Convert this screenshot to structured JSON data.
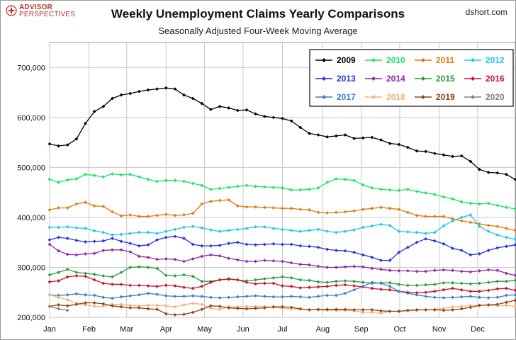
{
  "brand": {
    "line1": "ADVISOR",
    "line2": "PERSPECTIVES"
  },
  "header": {
    "title": "Weekly Unemployment Claims Yearly Comparisons",
    "subtitle": "Seasonally Adjusted Four-Week Moving Average",
    "source": "dshort.com"
  },
  "chart_data": {
    "type": "line",
    "title": "Weekly Unemployment Claims Yearly Comparisons",
    "subtitle": "Seasonally Adjusted Four-Week Moving Average",
    "xlabel": "",
    "ylabel": "",
    "x_unit": "week",
    "xlim": [
      1,
      53
    ],
    "ylim": [
      200000,
      750000
    ],
    "y_ticks": [
      200000,
      300000,
      400000,
      500000,
      600000,
      700000
    ],
    "y_tick_labels": [
      "200,000",
      "300,000",
      "400,000",
      "500,000",
      "600,000",
      "700,000"
    ],
    "x_tick_labels": [
      "Jan",
      "Feb",
      "Mar",
      "Apr",
      "May",
      "Jun",
      "Jul",
      "Aug",
      "Sep",
      "Oct",
      "Nov",
      "Dec"
    ],
    "x_tick_weeks": [
      1,
      5.4,
      9.6,
      14,
      18.3,
      22.6,
      27,
      31.5,
      35.8,
      40.1,
      44.5,
      48.8
    ],
    "grid": true,
    "legend_position": "top-right",
    "series": [
      {
        "name": "2009",
        "color": "#000000",
        "values": [
          547000,
          543000,
          545000,
          557000,
          588000,
          612000,
          622000,
          638000,
          645000,
          648000,
          652000,
          655000,
          657000,
          659000,
          657000,
          645000,
          638000,
          628000,
          616000,
          622000,
          619000,
          614000,
          615000,
          607000,
          602000,
          600000,
          598000,
          593000,
          580000,
          568000,
          565000,
          561000,
          563000,
          565000,
          558000,
          559000,
          560000,
          555000,
          548000,
          546000,
          540000,
          533000,
          532000,
          528000,
          525000,
          522000,
          523000,
          512000,
          496000,
          490000,
          489000,
          486000,
          476000
        ]
      },
      {
        "name": "2010",
        "color": "#1fe06a",
        "values": [
          476000,
          470000,
          475000,
          477000,
          486000,
          484000,
          481000,
          487000,
          485000,
          486000,
          481000,
          476000,
          472000,
          474000,
          474000,
          472000,
          468000,
          464000,
          456000,
          458000,
          460000,
          462000,
          464000,
          462000,
          461000,
          460000,
          459000,
          455000,
          455000,
          456000,
          459000,
          470000,
          477000,
          476000,
          474000,
          465000,
          459000,
          456000,
          455000,
          454000,
          456000,
          452000,
          449000,
          446000,
          441000,
          437000,
          431000,
          428000,
          427000,
          428000,
          424000,
          420000,
          417000
        ]
      },
      {
        "name": "2011",
        "color": "#e07a14",
        "values": [
          415000,
          419000,
          419000,
          427000,
          430000,
          423000,
          422000,
          411000,
          403000,
          405000,
          402000,
          402000,
          404000,
          406000,
          404000,
          405000,
          408000,
          427000,
          432000,
          434000,
          435000,
          423000,
          421000,
          421000,
          420000,
          419000,
          418000,
          418000,
          416000,
          415000,
          410000,
          409000,
          410000,
          411000,
          413000,
          416000,
          418000,
          420000,
          418000,
          416000,
          410000,
          404000,
          402000,
          402000,
          402000,
          397000,
          393000,
          390000,
          387000,
          384000,
          382000,
          378000,
          374000
        ]
      },
      {
        "name": "2012",
        "color": "#27c4e6",
        "values": [
          380000,
          380000,
          381000,
          379000,
          378000,
          373000,
          370000,
          365000,
          366000,
          368000,
          370000,
          370000,
          368000,
          372000,
          376000,
          380000,
          382000,
          379000,
          375000,
          372000,
          374000,
          376000,
          378000,
          381000,
          381000,
          378000,
          376000,
          374000,
          372000,
          374000,
          376000,
          372000,
          370000,
          372000,
          375000,
          380000,
          383000,
          386000,
          384000,
          372000,
          371000,
          370000,
          368000,
          370000,
          383000,
          393000,
          400000,
          405000,
          382000,
          372000,
          365000,
          360000,
          356000
        ]
      },
      {
        "name": "2013",
        "color": "#2233dd",
        "values": [
          355000,
          360000,
          358000,
          354000,
          351000,
          352000,
          353000,
          358000,
          352000,
          348000,
          343000,
          345000,
          355000,
          360000,
          362000,
          358000,
          346000,
          343000,
          343000,
          344000,
          348000,
          350000,
          346000,
          345000,
          346000,
          347000,
          346000,
          346000,
          343000,
          342000,
          340000,
          336000,
          334000,
          333000,
          330000,
          325000,
          320000,
          314000,
          314000,
          330000,
          340000,
          350000,
          357000,
          353000,
          347000,
          338000,
          334000,
          325000,
          327000,
          334000,
          339000,
          342000,
          345000
        ]
      },
      {
        "name": "2014",
        "color": "#8b2aa8",
        "values": [
          346000,
          333000,
          326000,
          325000,
          327000,
          328000,
          334000,
          335000,
          335000,
          331000,
          322000,
          320000,
          316000,
          317000,
          316000,
          312000,
          317000,
          322000,
          325000,
          323000,
          318000,
          315000,
          312000,
          312000,
          314000,
          313000,
          312000,
          309000,
          306000,
          305000,
          302000,
          300000,
          300000,
          301000,
          302000,
          301000,
          298000,
          296000,
          294000,
          293000,
          293000,
          292000,
          292000,
          294000,
          295000,
          294000,
          292000,
          291000,
          293000,
          295000,
          294000,
          288000,
          284000
        ]
      },
      {
        "name": "2015",
        "color": "#2b9a3d",
        "values": [
          285000,
          290000,
          296000,
          290000,
          288000,
          286000,
          283000,
          281000,
          290000,
          300000,
          301000,
          300000,
          298000,
          284000,
          283000,
          285000,
          282000,
          272000,
          272000,
          275000,
          276000,
          275000,
          273000,
          275000,
          277000,
          279000,
          281000,
          279000,
          275000,
          274000,
          271000,
          270000,
          272000,
          273000,
          272000,
          270000,
          268000,
          269000,
          269000,
          266000,
          264000,
          264000,
          265000,
          266000,
          269000,
          269000,
          268000,
          267000,
          268000,
          270000,
          272000,
          272000,
          274000
        ]
      },
      {
        "name": "2016",
        "color": "#c4152a",
        "values": [
          271000,
          273000,
          281000,
          283000,
          282000,
          275000,
          268000,
          266000,
          266000,
          264000,
          264000,
          263000,
          262000,
          264000,
          263000,
          260000,
          258000,
          262000,
          270000,
          275000,
          277000,
          275000,
          270000,
          267000,
          268000,
          268000,
          263000,
          262000,
          259000,
          260000,
          261000,
          262000,
          264000,
          265000,
          263000,
          261000,
          258000,
          256000,
          255000,
          252000,
          250000,
          249000,
          250000,
          252000,
          255000,
          258000,
          255000,
          252000,
          252000,
          254000,
          257000,
          258000,
          254000
        ]
      },
      {
        "name": "2017",
        "color": "#3f7fc4",
        "values": [
          245000,
          244000,
          245000,
          247000,
          245000,
          244000,
          240000,
          238000,
          241000,
          243000,
          245000,
          248000,
          246000,
          243000,
          242000,
          242000,
          243000,
          242000,
          240000,
          239000,
          240000,
          241000,
          242000,
          243000,
          242000,
          241000,
          241000,
          242000,
          241000,
          240000,
          242000,
          244000,
          244000,
          248000,
          255000,
          262000,
          270000,
          268000,
          262000,
          252000,
          248000,
          245000,
          242000,
          240000,
          239000,
          240000,
          241000,
          242000,
          240000,
          239000,
          240000,
          244000,
          245000
        ]
      },
      {
        "name": "2018",
        "color": "#f5b27a",
        "values": [
          245000,
          240000,
          235000,
          228000,
          225000,
          222000,
          222000,
          226000,
          226000,
          224000,
          223000,
          224000,
          224000,
          223000,
          221000,
          225000,
          228000,
          226000,
          218000,
          216000,
          221000,
          221000,
          222000,
          222000,
          222000,
          220000,
          218000,
          217000,
          216000,
          215000,
          215000,
          214000,
          214000,
          214000,
          213000,
          210000,
          210000,
          208000,
          212000,
          212000,
          213000,
          214000,
          215000,
          216000,
          218000,
          221000,
          222000,
          224000,
          224000,
          224000,
          223000,
          224000,
          222000
        ]
      },
      {
        "name": "2019",
        "color": "#8b4513",
        "values": [
          222000,
          225000,
          223000,
          226000,
          229000,
          229000,
          227000,
          223000,
          221000,
          219000,
          219000,
          217000,
          216000,
          207000,
          205000,
          206000,
          210000,
          216000,
          223000,
          222000,
          219000,
          218000,
          217000,
          218000,
          219000,
          221000,
          221000,
          220000,
          217000,
          215000,
          216000,
          216000,
          216000,
          216000,
          215000,
          215000,
          215000,
          213000,
          212000,
          212000,
          214000,
          215000,
          215000,
          215000,
          214000,
          215000,
          217000,
          220000,
          224000,
          225000,
          226000,
          230000,
          234000
        ]
      },
      {
        "name": "2020",
        "color": "#808080",
        "values": [
          222000,
          217000,
          214000
        ]
      }
    ]
  },
  "legend_rows": [
    [
      "2009",
      "2010",
      "2011",
      "2012"
    ],
    [
      "2013",
      "2014",
      "2015",
      "2016"
    ],
    [
      "2017",
      "2018",
      "2019",
      "2020"
    ]
  ]
}
